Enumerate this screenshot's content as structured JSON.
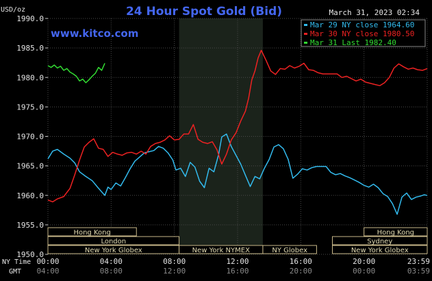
{
  "chart_data": {
    "type": "line",
    "title": "24 Hour Spot Gold (Bid)",
    "unit_label": "USD/oz",
    "source": "www.kitco.com",
    "timestamp": "March 31, 2023 02:34",
    "ylim": [
      1950.0,
      1990.0
    ],
    "yticks": [
      "1990.0",
      "1985.0",
      "1980.0",
      "1975.0",
      "1970.0",
      "1965.0",
      "1960.0",
      "1955.0",
      "1950.0"
    ],
    "grid": true,
    "legend_position": "top-right",
    "x_range_hours": [
      0,
      24
    ],
    "xaxis_label_ny": "NY Time",
    "xaxis_label_gmt": "GMT",
    "xticks_ny": [
      "00:00",
      "04:00",
      "08:00",
      "12:00",
      "16:00",
      "20:00",
      "23:59"
    ],
    "xticks_gmt": [
      "04:00",
      "08:00",
      "12:00",
      "16:00",
      "20:00",
      "00:00",
      "03:59"
    ],
    "highlight_band_hours": [
      8.3,
      13.6
    ],
    "series": [
      {
        "name": "Mar 29 NY close 1964.60",
        "color": "#33bbee",
        "x": [
          0,
          0.3,
          0.6,
          1.0,
          1.4,
          1.7,
          2.0,
          2.4,
          2.8,
          3.2,
          3.6,
          3.8,
          4.0,
          4.3,
          4.6,
          4.9,
          5.2,
          5.5,
          5.8,
          6.1,
          6.4,
          6.7,
          7.0,
          7.3,
          7.6,
          7.9,
          8.1,
          8.4,
          8.7,
          9.0,
          9.3,
          9.6,
          9.9,
          10.2,
          10.5,
          10.8,
          11.0,
          11.3,
          11.6,
          11.9,
          12.2,
          12.5,
          12.8,
          13.1,
          13.4,
          13.7,
          14.0,
          14.3,
          14.6,
          14.9,
          15.2,
          15.5,
          15.8,
          16.1,
          16.4,
          16.7,
          17.0,
          17.3,
          17.6,
          17.9,
          18.2,
          18.5,
          18.8,
          19.1,
          19.4,
          19.7,
          20.0,
          20.3,
          20.6,
          20.9,
          21.2,
          21.5,
          21.8,
          22.1,
          22.4,
          22.7,
          23.0,
          23.3,
          23.6,
          23.8,
          24.0
        ],
        "values": [
          1966.2,
          1967.5,
          1967.8,
          1967.0,
          1966.3,
          1965.5,
          1964.0,
          1963.2,
          1962.5,
          1961.2,
          1960.0,
          1961.4,
          1961.0,
          1962.1,
          1961.6,
          1963.0,
          1964.5,
          1965.8,
          1966.5,
          1967.2,
          1967.4,
          1967.6,
          1968.3,
          1968.0,
          1967.2,
          1966.0,
          1964.3,
          1964.6,
          1963.2,
          1965.6,
          1964.8,
          1962.4,
          1961.3,
          1964.6,
          1964.0,
          1966.9,
          1969.9,
          1970.4,
          1968.3,
          1966.8,
          1965.3,
          1963.4,
          1961.5,
          1963.2,
          1962.8,
          1964.6,
          1966.1,
          1968.2,
          1968.6,
          1967.9,
          1966.1,
          1962.9,
          1963.6,
          1964.5,
          1964.3,
          1964.7,
          1964.9,
          1964.9,
          1964.9,
          1963.9,
          1963.5,
          1963.7,
          1963.3,
          1963.0,
          1962.6,
          1962.2,
          1961.7,
          1961.4,
          1961.9,
          1961.3,
          1960.3,
          1959.8,
          1958.6,
          1956.8,
          1959.7,
          1960.4,
          1959.3,
          1959.7,
          1959.9,
          1960.1,
          1960.0
        ]
      },
      {
        "name": "Mar 30 NY close 1980.50",
        "color": "#ee2222",
        "x": [
          0,
          0.3,
          0.6,
          1.0,
          1.4,
          1.7,
          2.0,
          2.3,
          2.6,
          2.9,
          3.2,
          3.5,
          3.8,
          4.1,
          4.4,
          4.7,
          5.0,
          5.3,
          5.6,
          5.9,
          6.2,
          6.5,
          6.8,
          7.1,
          7.4,
          7.7,
          8.0,
          8.3,
          8.6,
          8.9,
          9.2,
          9.5,
          9.8,
          10.1,
          10.4,
          10.7,
          11.0,
          11.3,
          11.6,
          11.9,
          12.2,
          12.5,
          12.7,
          12.9,
          13.1,
          13.3,
          13.5,
          13.8,
          14.1,
          14.4,
          14.7,
          15.0,
          15.3,
          15.6,
          15.9,
          16.2,
          16.5,
          16.8,
          17.1,
          17.4,
          17.7,
          18.0,
          18.3,
          18.6,
          18.9,
          19.2,
          19.5,
          19.8,
          20.1,
          20.4,
          20.7,
          21.0,
          21.3,
          21.6,
          21.9,
          22.2,
          22.5,
          22.8,
          23.1,
          23.4,
          23.7,
          24.0
        ],
        "values": [
          1959.2,
          1958.9,
          1959.4,
          1959.8,
          1961.2,
          1963.5,
          1966.0,
          1968.2,
          1969.0,
          1969.6,
          1968.0,
          1967.8,
          1966.6,
          1967.3,
          1967.0,
          1966.8,
          1967.2,
          1967.3,
          1967.0,
          1967.5,
          1967.0,
          1968.3,
          1968.8,
          1969.0,
          1969.4,
          1970.1,
          1969.4,
          1969.5,
          1970.4,
          1970.4,
          1972.0,
          1969.5,
          1969.0,
          1968.8,
          1969.1,
          1967.7,
          1965.3,
          1967.0,
          1969.4,
          1970.6,
          1972.6,
          1974.3,
          1976.5,
          1979.6,
          1981.1,
          1983.3,
          1984.6,
          1982.9,
          1981.1,
          1980.5,
          1981.5,
          1981.4,
          1982.0,
          1981.6,
          1981.9,
          1982.4,
          1981.3,
          1981.2,
          1980.8,
          1980.6,
          1980.6,
          1980.6,
          1980.6,
          1980.0,
          1980.2,
          1979.8,
          1979.4,
          1979.7,
          1979.2,
          1979.0,
          1978.8,
          1978.6,
          1979.1,
          1980.0,
          1981.6,
          1982.3,
          1981.8,
          1981.4,
          1981.6,
          1981.3,
          1981.2,
          1981.5
        ]
      },
      {
        "name": "Mar 31 Last 1982.40",
        "color": "#33dd33",
        "x": [
          0,
          0.2,
          0.4,
          0.6,
          0.8,
          1.0,
          1.2,
          1.4,
          1.6,
          1.8,
          2.0,
          2.2,
          2.4,
          2.6,
          2.8,
          3.0,
          3.2,
          3.4,
          3.6
        ],
        "values": [
          1982.0,
          1981.7,
          1982.1,
          1981.6,
          1981.9,
          1981.2,
          1981.5,
          1980.9,
          1980.6,
          1980.2,
          1979.4,
          1979.7,
          1979.1,
          1979.6,
          1980.2,
          1980.7,
          1981.7,
          1981.2,
          1982.4
        ]
      }
    ],
    "sessions": [
      {
        "name": "Hong Kong",
        "row": 0,
        "start": 0,
        "end": 5.6
      },
      {
        "name": "London",
        "row": 1,
        "start": 0,
        "end": 8.3
      },
      {
        "name": "New York Globex",
        "row": 2,
        "start": 0,
        "end": 8.3
      },
      {
        "name": "New York NYMEX",
        "row": 2,
        "start": 8.3,
        "end": 13.6
      },
      {
        "name": "NY Globex",
        "row": 2,
        "start": 13.6,
        "end": 17.0
      },
      {
        "name": "Hong Kong",
        "row": 0,
        "start": 20.0,
        "end": 24.0
      },
      {
        "name": "Sydney",
        "row": 1,
        "start": 18.0,
        "end": 24.0
      },
      {
        "name": "New York Globex",
        "row": 2,
        "start": 18.0,
        "end": 24.0
      }
    ]
  }
}
